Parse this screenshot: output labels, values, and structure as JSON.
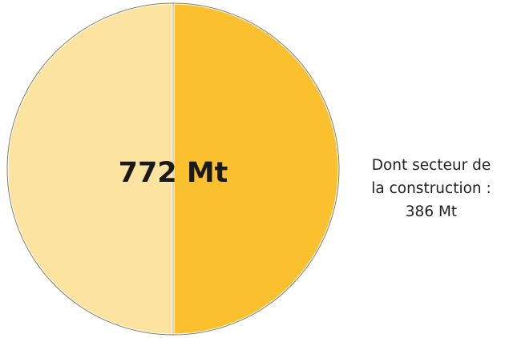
{
  "chart_data": {
    "type": "pie",
    "title": "",
    "total_label": "772 Mt",
    "total_value": 772,
    "unit": "Mt",
    "slices": [
      {
        "label": "",
        "value": 386,
        "color": "#FDE3A0"
      },
      {
        "label": "Dont secteur de la construction",
        "value": 386,
        "color": "#FBC02D"
      }
    ],
    "annotation": {
      "line1": "Dont secteur de",
      "line2": "la construction :",
      "value_text": "386 Mt"
    }
  }
}
